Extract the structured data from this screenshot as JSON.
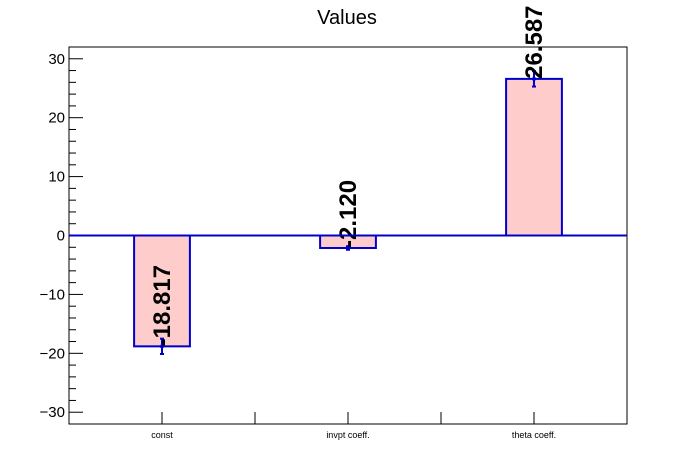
{
  "chart_data": {
    "type": "bar",
    "title": "Values",
    "xlabel": "",
    "ylabel": "",
    "categories": [
      "const",
      "invpt coeff.",
      "theta coeff."
    ],
    "values": [
      -18.817,
      -2.12,
      26.587
    ],
    "value_labels": [
      "-18.817",
      "-2.120",
      "26.587"
    ],
    "errors": [
      1.3,
      0.3,
      1.3
    ],
    "ylim": [
      -32,
      32
    ],
    "y_ticks": [
      -30,
      -20,
      -10,
      0,
      10,
      20,
      30
    ],
    "y_tick_labels": [
      "−30",
      "−20",
      "−10",
      "0",
      "10",
      "20",
      "30"
    ],
    "grid": false,
    "legend": "none",
    "colors": {
      "bar_fill": "#ffcccc",
      "bar_edge": "#0000cc",
      "zero_line": "#0000cc",
      "axis": "#000000"
    }
  }
}
